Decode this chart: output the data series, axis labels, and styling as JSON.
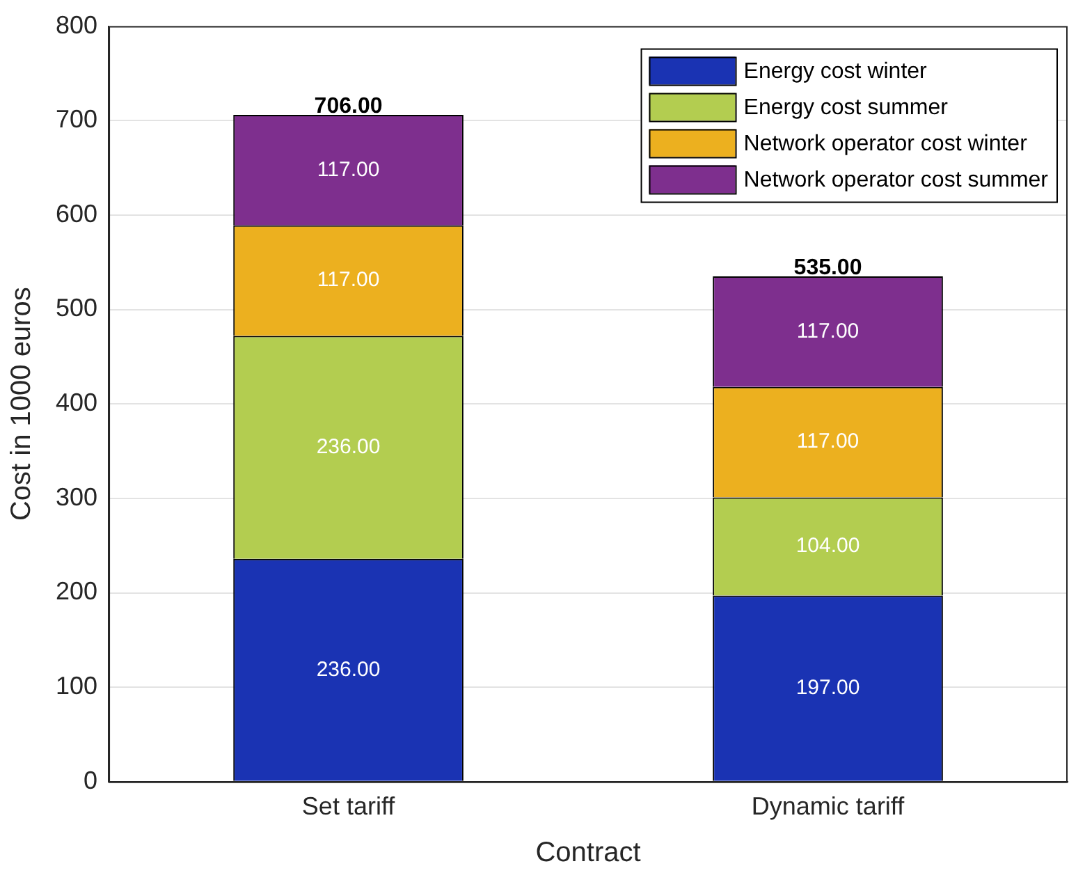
{
  "chart_data": {
    "type": "bar",
    "stacked": true,
    "xlabel": "Contract",
    "ylabel": "Cost in 1000 euros",
    "categories": [
      "Set tariff",
      "Dynamic tariff"
    ],
    "series": [
      {
        "name": "Energy cost winter",
        "color": "#1a33b3",
        "values": [
          236,
          197
        ],
        "value_labels": [
          "236.00",
          "197.00"
        ]
      },
      {
        "name": "Energy cost summer",
        "color": "#b3cd50",
        "values": [
          236,
          104
        ],
        "value_labels": [
          "236.00",
          "104.00"
        ]
      },
      {
        "name": "Network operator cost winter",
        "color": "#ecb01f",
        "values": [
          117,
          117
        ],
        "value_labels": [
          "117.00",
          "117.00"
        ]
      },
      {
        "name": "Network operator cost summer",
        "color": "#7e2f8e",
        "values": [
          117,
          117
        ],
        "value_labels": [
          "117.00",
          "117.00"
        ]
      }
    ],
    "totals": [
      "706.00",
      "535.00"
    ],
    "ylim": [
      0,
      800
    ],
    "yticks": [
      0,
      100,
      200,
      300,
      400,
      500,
      600,
      700,
      800
    ],
    "grid": "y",
    "legend": "top right"
  }
}
